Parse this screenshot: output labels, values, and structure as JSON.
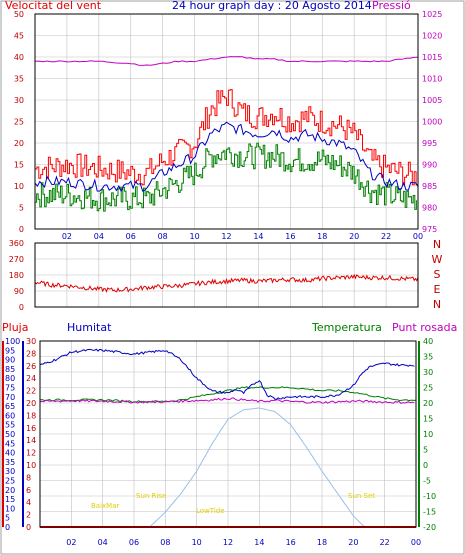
{
  "header": {
    "title": "24 hour graph day : 20 Agosto 2014"
  },
  "colors": {
    "wind_speed": "#ff0000",
    "wind_gust": "#0000c0",
    "wind_avg": "#008000",
    "pressure": "#c000c0",
    "wind_direction": "#e00000",
    "rain": "#ff0000",
    "humidity": "#0000c0",
    "temperature": "#008000",
    "dew_point": "#c000c0",
    "solar": "#9ac0e8",
    "grid": "#c0c0c0"
  },
  "chart_data": [
    {
      "type": "line",
      "title_left": "Velocitat del vent",
      "title_right": "Pressió",
      "x_tick_labels": [
        "02",
        "04",
        "06",
        "08",
        "10",
        "12",
        "14",
        "16",
        "18",
        "20",
        "22",
        "00"
      ],
      "ylim": [
        0,
        50
      ],
      "y_ticks": [
        "0",
        "5",
        "10",
        "15",
        "20",
        "25",
        "30",
        "35",
        "40",
        "45",
        "50"
      ],
      "y2lim": [
        975,
        1025
      ],
      "y2_ticks": [
        "975",
        "980",
        "985",
        "990",
        "995",
        "1000",
        "1005",
        "1010",
        "1015",
        "1020",
        "1025"
      ],
      "series": [
        {
          "key": "gust",
          "x": [
            0,
            2,
            4,
            6,
            7,
            8,
            9,
            10,
            11,
            12,
            13,
            14,
            15,
            16,
            17,
            18,
            19,
            20,
            21,
            22,
            23,
            24
          ],
          "values": [
            14,
            15,
            14,
            13,
            13,
            16,
            18,
            20,
            28,
            31,
            27,
            26,
            27,
            25,
            26,
            25,
            24,
            22,
            16,
            14,
            13,
            12
          ]
        },
        {
          "key": "speed",
          "x": [
            0,
            2,
            4,
            6,
            7,
            8,
            9,
            10,
            11,
            12,
            13,
            14,
            15,
            16,
            17,
            18,
            19,
            20,
            21,
            22,
            23,
            24
          ],
          "values": [
            11,
            11,
            10,
            10,
            10,
            13,
            15,
            17,
            22,
            24,
            23,
            22,
            23,
            21,
            22,
            21,
            20,
            18,
            13,
            11,
            10,
            10
          ]
        },
        {
          "key": "avg",
          "x": [
            0,
            2,
            4,
            6,
            7,
            8,
            9,
            10,
            11,
            12,
            13,
            14,
            15,
            16,
            17,
            18,
            19,
            20,
            21,
            22,
            23,
            24
          ],
          "values": [
            8,
            8,
            7,
            7,
            7,
            9,
            11,
            13,
            17,
            18,
            17,
            17,
            17,
            16,
            16,
            16,
            15,
            13,
            9,
            8,
            7,
            7
          ]
        },
        {
          "key": "pressure",
          "x": [
            0,
            2,
            4,
            6,
            7,
            8,
            9,
            10,
            11,
            12,
            13,
            14,
            15,
            16,
            17,
            18,
            19,
            20,
            21,
            22,
            23,
            24
          ],
          "values": [
            1014,
            1014,
            1014,
            1013.5,
            1013,
            1013.5,
            1014,
            1014,
            1014.5,
            1015,
            1015,
            1014.5,
            1014.5,
            1014,
            1014,
            1014,
            1014,
            1014,
            1014,
            1014,
            1014.5,
            1015
          ]
        }
      ]
    },
    {
      "type": "line",
      "ylim": [
        0,
        360
      ],
      "y_ticks": [
        "0",
        "90",
        "180",
        "270",
        "360"
      ],
      "compass": [
        "N",
        "W",
        "S",
        "E",
        "N"
      ],
      "series": [
        {
          "key": "direction",
          "x": [
            0,
            1,
            2,
            3,
            4,
            5,
            6,
            7,
            8,
            9,
            10,
            11,
            12,
            13,
            14,
            15,
            16,
            17,
            18,
            19,
            20,
            21,
            22,
            23,
            24
          ],
          "values": [
            140,
            125,
            120,
            110,
            100,
            95,
            100,
            110,
            115,
            120,
            130,
            140,
            145,
            150,
            145,
            150,
            155,
            150,
            160,
            165,
            170,
            165,
            165,
            160,
            155
          ]
        }
      ]
    },
    {
      "type": "line",
      "title_rain": "Pluja",
      "title_humidity": "Humitat",
      "title_temperature": "Temperatura",
      "title_dewpoint": "Punt rosada",
      "humidity_ylim": [
        0,
        100
      ],
      "humidity_ticks": [
        "0",
        "5",
        "10",
        "15",
        "20",
        "25",
        "30",
        "35",
        "40",
        "45",
        "50",
        "55",
        "60",
        "65",
        "70",
        "75",
        "80",
        "85",
        "90",
        "95",
        "100"
      ],
      "rain_ylim": [
        0,
        30
      ],
      "rain_ticks": [
        "0",
        "2",
        "4",
        "6",
        "8",
        "10",
        "12",
        "14",
        "16",
        "18",
        "20",
        "22",
        "24",
        "26",
        "28",
        "30"
      ],
      "temp_ylim": [
        -20,
        40
      ],
      "temp_ticks": [
        "-20",
        "-15",
        "-10",
        "-5",
        "0",
        "5",
        "10",
        "15",
        "20",
        "25",
        "30",
        "35",
        "40"
      ],
      "annotations": [
        {
          "text": "BaixMar"
        },
        {
          "text": "Sun Rise"
        },
        {
          "text": "LowTide"
        },
        {
          "text": "Sun Set"
        }
      ],
      "series": [
        {
          "key": "humidity",
          "x": [
            0,
            1,
            2,
            3,
            4,
            5,
            6,
            7,
            8,
            9,
            10,
            11,
            12,
            12.5,
            13,
            13.5,
            14,
            14.5,
            15,
            16,
            17,
            18,
            19,
            20,
            20.5,
            21,
            22,
            23,
            24
          ],
          "values": [
            87,
            90,
            94,
            95,
            95,
            94,
            93,
            94,
            95,
            90,
            80,
            73,
            72,
            74,
            72,
            76,
            79,
            71,
            69,
            70,
            70,
            70,
            71,
            76,
            82,
            86,
            88,
            87,
            87
          ]
        },
        {
          "key": "temperature",
          "x": [
            0,
            2,
            4,
            6,
            8,
            9,
            10,
            11,
            12,
            13,
            14,
            15,
            16,
            17,
            18,
            19,
            20,
            21,
            22,
            23,
            24
          ],
          "values": [
            21,
            21,
            21,
            20.5,
            20.5,
            21,
            22,
            23,
            24,
            25,
            25,
            25,
            25,
            24.5,
            24,
            24,
            23.5,
            22.5,
            21.5,
            21,
            21
          ]
        },
        {
          "key": "dewpoint",
          "x": [
            0,
            2,
            4,
            6,
            8,
            10,
            11,
            12,
            13,
            14,
            15,
            16,
            17,
            18,
            19,
            20,
            21,
            22,
            23,
            24
          ],
          "values": [
            20.5,
            20.7,
            20.6,
            20.3,
            20.4,
            20.8,
            21,
            21.5,
            21,
            20.5,
            20.8,
            20.5,
            20.3,
            20.2,
            20.4,
            20.6,
            20.5,
            20.3,
            20.2,
            20.2
          ]
        },
        {
          "key": "solar_humidity_scale",
          "x": [
            0,
            7,
            8,
            9,
            10,
            11,
            12,
            13,
            14,
            15,
            16,
            17,
            18,
            19,
            20,
            20.7,
            24
          ],
          "values": [
            0,
            0,
            8,
            18,
            30,
            45,
            58,
            63,
            64,
            62,
            55,
            43,
            30,
            18,
            6,
            0,
            0
          ]
        },
        {
          "key": "rain",
          "x": [
            0,
            24
          ],
          "values": [
            0,
            0
          ]
        }
      ]
    }
  ]
}
